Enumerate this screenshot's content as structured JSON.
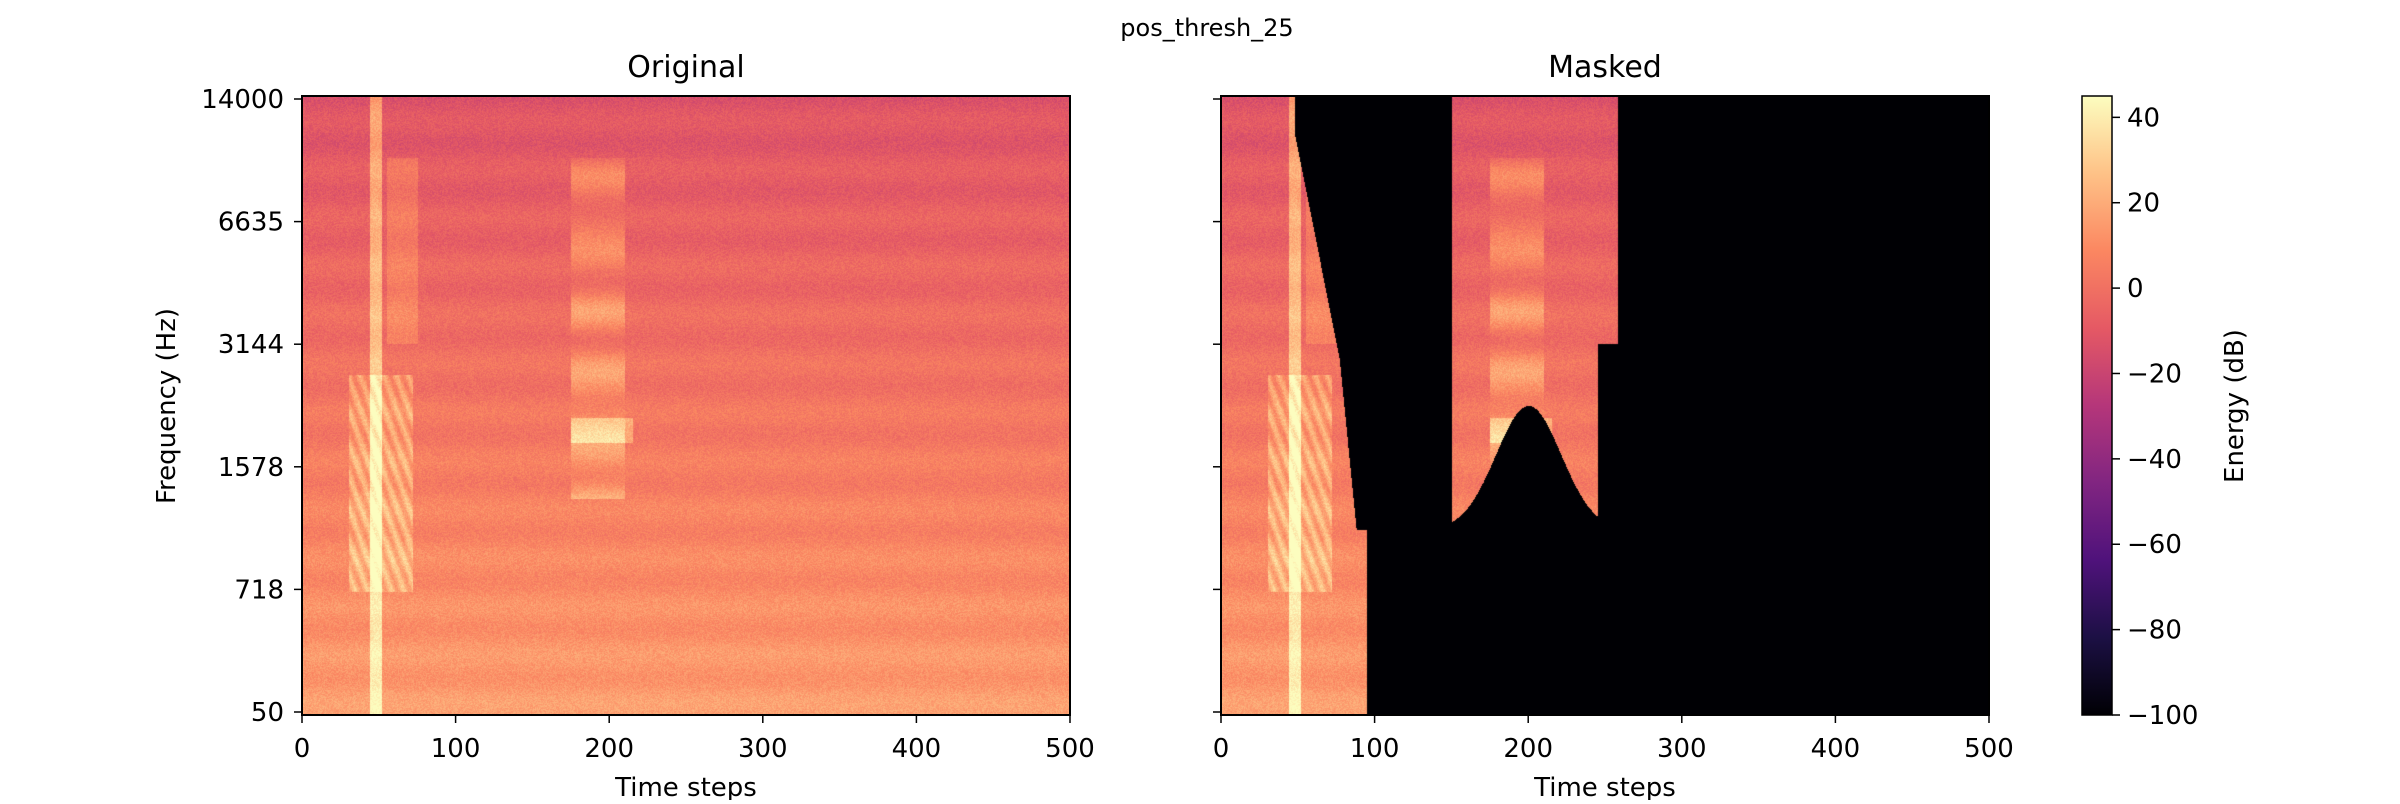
{
  "suptitle": "pos_thresh_25",
  "colormap": {
    "name": "magma",
    "stops": [
      "#000004",
      "#1c1044",
      "#4f127b",
      "#812581",
      "#b5367a",
      "#e55964",
      "#fb8761",
      "#fec287",
      "#fcfdbf"
    ]
  },
  "chart_data": [
    {
      "type": "heatmap",
      "title": "Original",
      "xlabel": "Time steps",
      "ylabel": "Frequency (Hz)",
      "xlim": [
        0,
        500
      ],
      "xticks": [
        "0",
        "100",
        "200",
        "300",
        "400",
        "500"
      ],
      "yticks": [
        "50",
        "718",
        "1578",
        "3144",
        "6635",
        "14000"
      ],
      "ylim_hz": [
        50,
        14000
      ],
      "value_range_db": [
        -40,
        35
      ],
      "features": [
        {
          "kind": "onset-burst",
          "t_start": 40,
          "t_end": 70,
          "description_free": true
        },
        {
          "kind": "harmonic-burst",
          "t_start": 175,
          "t_end": 215
        }
      ]
    },
    {
      "type": "heatmap",
      "title": "Masked",
      "xlabel": "Time steps",
      "xlim": [
        0,
        500
      ],
      "xticks": [
        "0",
        "100",
        "200",
        "300",
        "400",
        "500"
      ],
      "yticks_shown": false,
      "masked_value_db": -100,
      "kept_regions": [
        {
          "t_start": 0,
          "t_end": 95
        },
        {
          "t_start": 150,
          "t_end": 260
        }
      ]
    },
    {
      "type": "colorbar",
      "label": "Energy (dB)",
      "range": [
        -100,
        45
      ],
      "ticks": [
        "40",
        "20",
        "0",
        "−20",
        "−40",
        "−60",
        "−80",
        "−100"
      ],
      "tick_values": [
        40,
        20,
        0,
        -20,
        -40,
        -60,
        -80,
        -100
      ]
    }
  ]
}
